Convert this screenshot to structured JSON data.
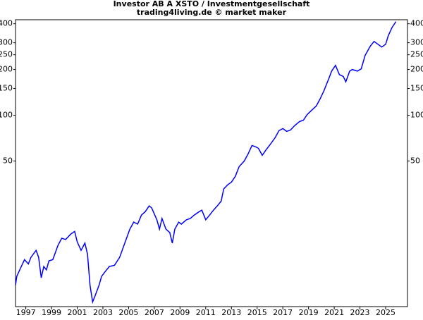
{
  "chart_data": {
    "type": "line",
    "title": "Investor AB A XSTO / Investmentgesellschaft",
    "subtitle": "trading4living.de © market maker",
    "log_scale": true,
    "grid": false,
    "xlim": [
      1996.2,
      2026.7
    ],
    "ylim": [
      5.5,
      425
    ],
    "xticks": [
      1997,
      1999,
      2001,
      2003,
      2005,
      2007,
      2009,
      2011,
      2013,
      2015,
      2017,
      2019,
      2021,
      2023,
      2025
    ],
    "yticks": [
      50,
      100,
      150,
      200,
      250,
      300,
      400
    ],
    "x": [
      1996.2,
      1996.3,
      1996.6,
      1996.9,
      1997.2,
      1997.4,
      1997.8,
      1998.0,
      1998.2,
      1998.4,
      1998.6,
      1998.8,
      1999.1,
      1999.5,
      1999.8,
      2000.1,
      2000.5,
      2000.8,
      2001.0,
      2001.3,
      2001.6,
      2001.8,
      2002.0,
      2002.2,
      2002.4,
      2002.7,
      2002.9,
      2003.2,
      2003.5,
      2003.9,
      2004.3,
      2004.7,
      2005.1,
      2005.4,
      2005.7,
      2006.0,
      2006.3,
      2006.6,
      2006.8,
      2007.2,
      2007.4,
      2007.6,
      2007.9,
      2008.2,
      2008.4,
      2008.6,
      2008.9,
      2009.1,
      2009.5,
      2009.8,
      2010.1,
      2010.5,
      2010.7,
      2011.0,
      2011.3,
      2011.6,
      2011.9,
      2012.2,
      2012.4,
      2012.7,
      2013.0,
      2013.3,
      2013.6,
      2014.0,
      2014.3,
      2014.6,
      2014.9,
      2015.1,
      2015.4,
      2015.7,
      2016.0,
      2016.4,
      2016.7,
      2017.0,
      2017.3,
      2017.6,
      2017.9,
      2018.3,
      2018.6,
      2018.9,
      2019.3,
      2019.6,
      2019.9,
      2020.2,
      2020.6,
      2020.8,
      2021.1,
      2021.4,
      2021.7,
      2021.9,
      2022.2,
      2022.4,
      2022.8,
      2023.1,
      2023.4,
      2023.8,
      2024.1,
      2024.4,
      2024.7,
      2025.0,
      2025.2,
      2025.5,
      2025.8
    ],
    "series": [
      {
        "color": "#0000ff",
        "values": [
          7.6,
          8.7,
          9.9,
          11.2,
          10.5,
          11.6,
          12.9,
          11.6,
          8.5,
          10.1,
          9.6,
          11.0,
          11.2,
          13.9,
          15.5,
          15.2,
          16.5,
          17.2,
          14.7,
          12.9,
          14.4,
          12.2,
          7.6,
          5.9,
          6.5,
          7.6,
          8.7,
          9.4,
          10.1,
          10.3,
          11.6,
          14.4,
          17.8,
          19.8,
          19.2,
          22.0,
          23.2,
          25.3,
          24.5,
          20.5,
          17.8,
          20.9,
          17.8,
          16.9,
          14.4,
          17.8,
          19.8,
          19.2,
          20.5,
          20.9,
          22.0,
          23.2,
          23.7,
          20.5,
          22.0,
          23.7,
          25.3,
          27.2,
          32.7,
          34.8,
          36.3,
          39.5,
          45.9,
          50,
          55.7,
          63.2,
          61.9,
          60.6,
          54.5,
          59.3,
          63.9,
          71.1,
          79.1,
          81.7,
          78.3,
          80.0,
          85.2,
          90.9,
          92.8,
          101,
          109,
          115,
          128,
          145,
          176,
          195,
          213,
          185,
          180,
          166,
          195,
          200,
          195,
          202,
          247,
          284,
          306,
          293,
          281,
          293,
          333,
          378,
          413
        ]
      }
    ]
  }
}
